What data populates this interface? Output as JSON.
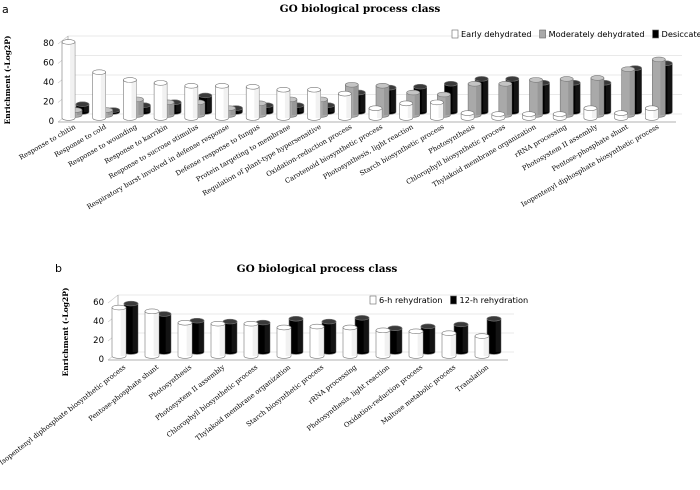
{
  "chart_data": [
    {
      "panel": "a",
      "type": "bar",
      "title": "GO biological process class",
      "ylabel": "Enrichment (-Log2P)",
      "ylim": [
        0,
        80
      ],
      "yticks": [
        0,
        20,
        40,
        60,
        80
      ],
      "legend": "top-right",
      "categories": [
        "Response to chitin",
        "Response to cold",
        "Response to wounding",
        "Response to karrikin",
        "Response to sucrose stimulus",
        "Respiratory burst involved in defense response",
        "Defense response to fungus",
        "Protein targeting to membrane",
        "Regulation of plant-type hypersensitive",
        "Oxidation-reduction process",
        "Carotenoid biosynthetic process",
        "Photosynthesis, light reaction",
        "Starch biosynthetic process",
        "Photosynthesis",
        "Chlorophyll biosynthetic process",
        "Thylakoid membrane organization",
        "rRNA processing",
        "Photosystem II assembly",
        "Pentose-phosphate shunt",
        "Isopentenyl diphosphate biosynthetic process"
      ],
      "series": [
        {
          "name": "Early dehydrated",
          "color": "#ffffff",
          "values": [
            78,
            47,
            39,
            36,
            33,
            33,
            32,
            29,
            29,
            25,
            10,
            15,
            16,
            5,
            4,
            4,
            4,
            10,
            5,
            10
          ]
        },
        {
          "name": "Moderately dehydrated",
          "color": "#a9a9a9",
          "values": [
            5,
            5,
            16,
            13,
            13,
            7,
            12,
            16,
            16,
            31,
            30,
            23,
            21,
            32,
            32,
            36,
            37,
            38,
            47,
            57
          ]
        },
        {
          "name": "Desiccated",
          "color": "#000000",
          "values": [
            8,
            2,
            7,
            10,
            17,
            4,
            7,
            7,
            7,
            20,
            25,
            26,
            29,
            34,
            34,
            30,
            30,
            30,
            45,
            50
          ]
        }
      ]
    },
    {
      "panel": "b",
      "type": "bar",
      "title": "GO biological process class",
      "ylabel": "Enrichment (-Log2P)",
      "ylim": [
        0,
        60
      ],
      "yticks": [
        0,
        20,
        40,
        60
      ],
      "legend": "top-right",
      "categories": [
        "Isopentenyl diphosphate biosynthetic process",
        "Pentose-phosphate shunt",
        "Photosynthesis",
        "Photosystem II assembly",
        "Chlorophyll biosynthetic process",
        "Thylakoid membrane organization",
        "Starch biosynthetic process",
        "rRNA processing",
        "Photosynthesis, light reaction",
        "Oxidation-reduction process",
        "Maltose metabolic process",
        "Translation"
      ],
      "series": [
        {
          "name": "6-h rehydration",
          "color": "#ffffff",
          "values": [
            51,
            47,
            35,
            34,
            34,
            30,
            31,
            30,
            27,
            26,
            24,
            21
          ]
        },
        {
          "name": "12-h rehydration",
          "color": "#000000",
          "values": [
            51,
            40,
            33,
            32,
            31,
            35,
            32,
            36,
            25,
            27,
            29,
            35
          ]
        }
      ]
    }
  ]
}
